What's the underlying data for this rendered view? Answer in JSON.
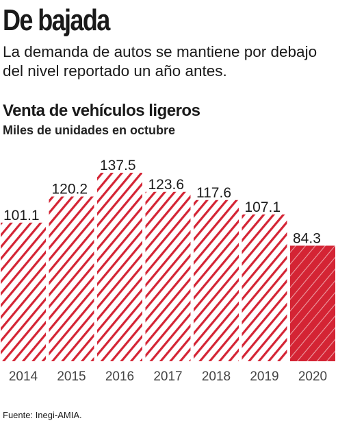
{
  "header": {
    "headline": "De bajada",
    "deck": "La demanda de autos se mantiene por debajo del nivel reportado un año antes."
  },
  "chart_data": {
    "type": "bar",
    "title": "Venta de vehículos ligeros",
    "subtitle": "Miles de unidades en octubre",
    "categories": [
      "2014",
      "2015",
      "2016",
      "2017",
      "2018",
      "2019",
      "2020"
    ],
    "values": [
      101.1,
      120.2,
      137.5,
      123.6,
      117.6,
      107.1,
      84.3
    ],
    "data_labels": [
      "101.1",
      "120.2",
      "137.5",
      "123.6",
      "117.6",
      "107.1",
      "84.3"
    ],
    "highlight_category": "2020",
    "colors": {
      "stripe": "#d42434",
      "highlight_fill": "#d42434"
    },
    "xlabel": "",
    "ylabel": "",
    "grid": false
  },
  "footer": {
    "source": "Fuente: Inegi-AMIA."
  }
}
